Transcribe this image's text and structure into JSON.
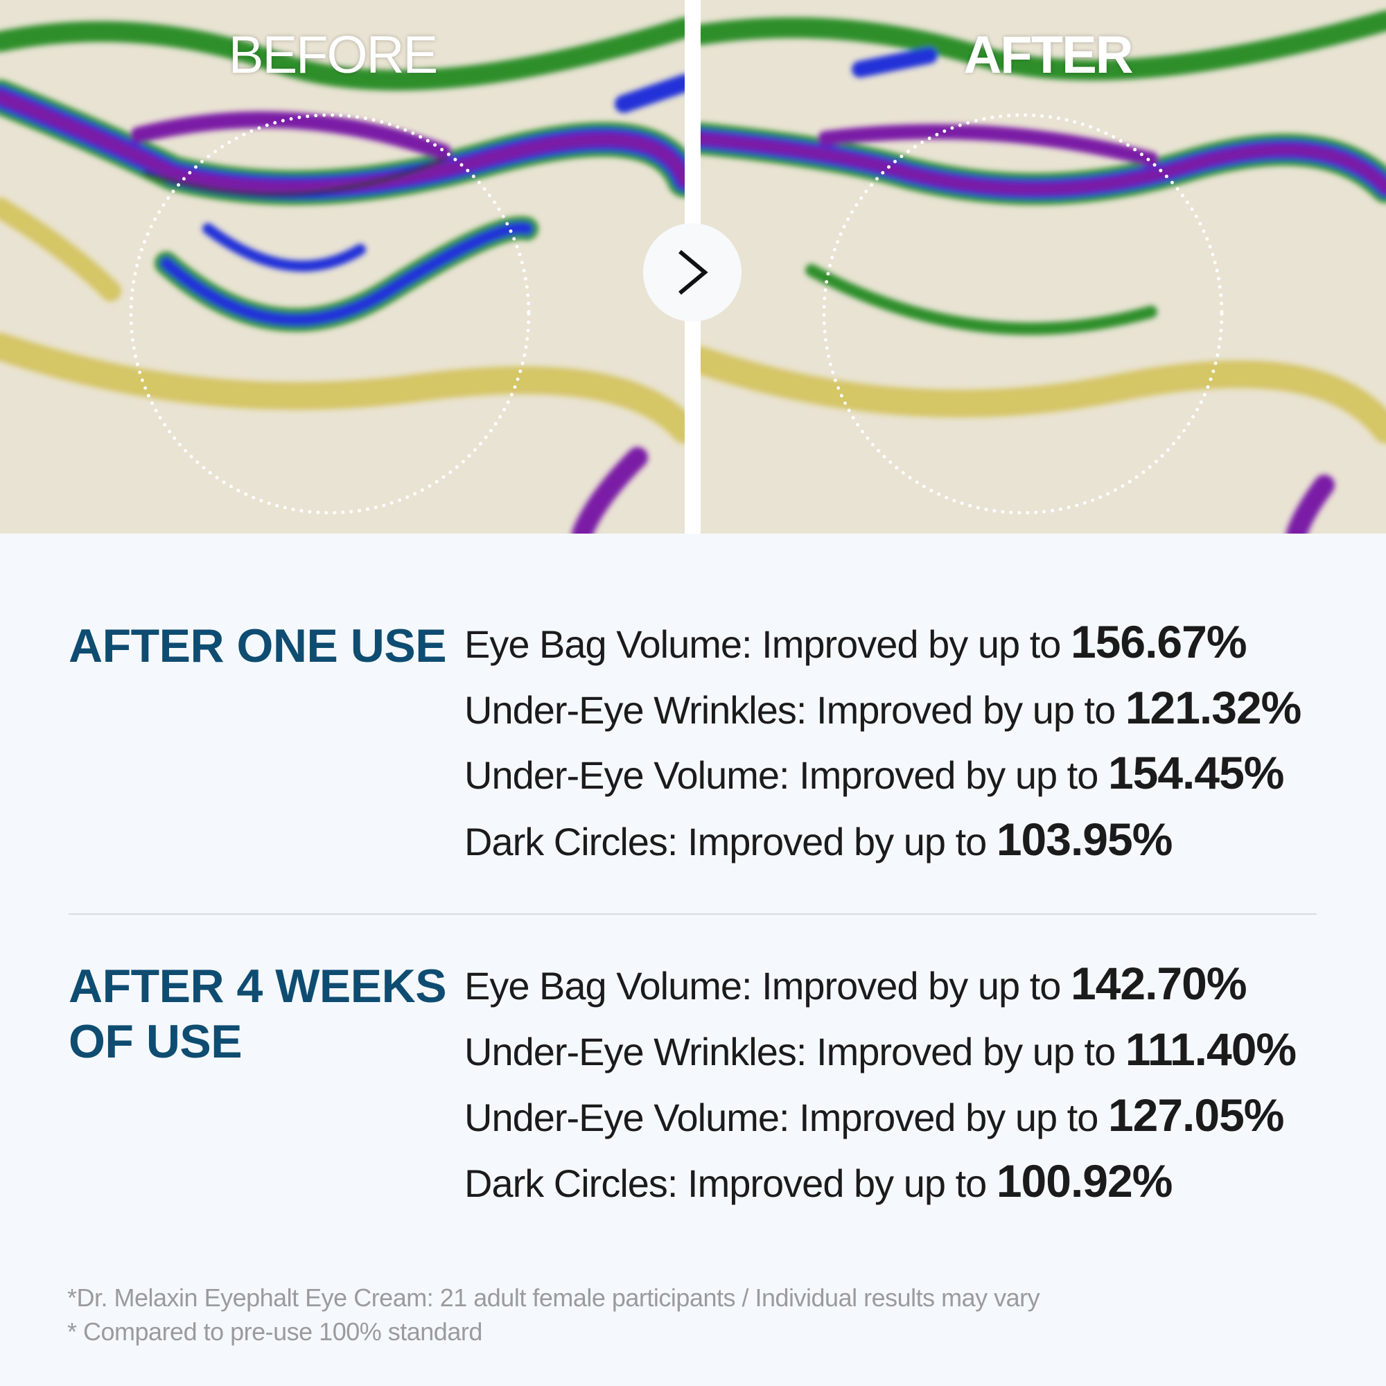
{
  "images": {
    "before_label": "BEFORE",
    "after_label": "AFTER",
    "arrow_icon": "chevron-right-icon",
    "colors": {
      "purple": "#7a1aa6",
      "blue": "#2231d8",
      "green": "#2e8f2a",
      "yellow": "#c8b21e",
      "skin": "#e9e3d3"
    }
  },
  "groups": [
    {
      "title": "AFTER ONE USE",
      "items": [
        {
          "text": "Eye Bag Volume: Improved by up to ",
          "value": "156.67%"
        },
        {
          "text": "Under-Eye Wrinkles: Improved by up to ",
          "value": "121.32%"
        },
        {
          "text": "Under-Eye Volume: Improved by up to ",
          "value": "154.45%"
        },
        {
          "text": "Dark Circles: Improved by up to ",
          "value": "103.95%"
        }
      ]
    },
    {
      "title_line1": "AFTER 4 WEEKS",
      "title_line2": "OF USE",
      "items": [
        {
          "text": "Eye Bag Volume: Improved by up to ",
          "value": "142.70%"
        },
        {
          "text": "Under-Eye Wrinkles: Improved by up to ",
          "value": "111.40%"
        },
        {
          "text": "Under-Eye Volume: Improved by up to ",
          "value": "127.05%"
        },
        {
          "text": "Dark Circles: Improved by up to ",
          "value": "100.92%"
        }
      ]
    }
  ],
  "footnotes": [
    "*Dr. Melaxin Eyephalt Eye Cream: 21 adult female participants / Individual results may vary",
    "* Compared to pre-use 100% standard"
  ],
  "accent_color": "#0f4c71"
}
